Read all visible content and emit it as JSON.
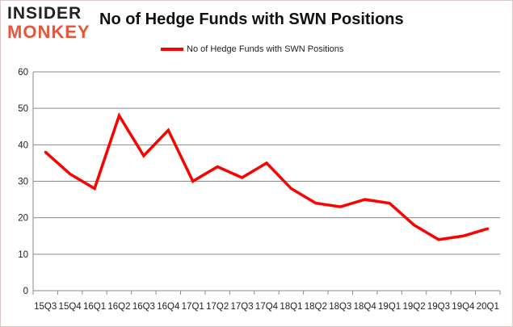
{
  "logo": {
    "line1": "INSIDER",
    "line2": "MONKEY"
  },
  "chart_data": {
    "type": "line",
    "title": "No of Hedge Funds with SWN Positions",
    "categories": [
      "15Q3",
      "15Q4",
      "16Q1",
      "16Q2",
      "16Q3",
      "16Q4",
      "17Q1",
      "17Q2",
      "17Q3",
      "17Q4",
      "18Q1",
      "18Q2",
      "18Q3",
      "18Q4",
      "19Q1",
      "19Q2",
      "19Q3",
      "19Q4",
      "20Q1"
    ],
    "series": [
      {
        "name": "No of Hedge Funds with SWN Positions",
        "color": "#ff0000",
        "values": [
          38,
          32,
          28,
          48,
          37,
          44,
          30,
          34,
          31,
          35,
          28,
          24,
          23,
          25,
          24,
          18,
          14,
          15,
          17
        ]
      }
    ],
    "ylim": [
      0,
      60
    ],
    "yticks": [
      0,
      10,
      20,
      30,
      40,
      50,
      60
    ],
    "grid": true,
    "legend": "top-center"
  }
}
